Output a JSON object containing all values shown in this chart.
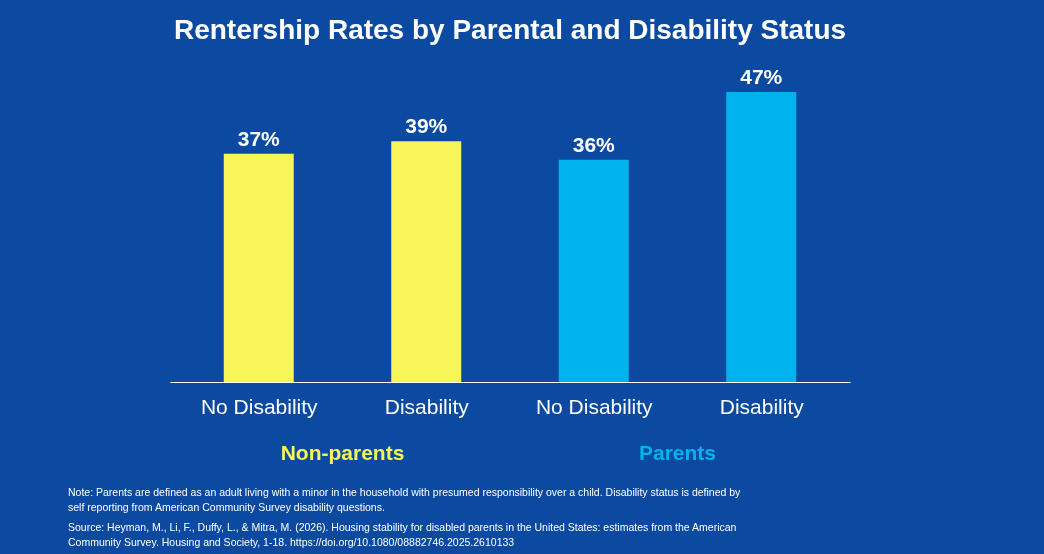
{
  "chart_data": {
    "type": "bar",
    "title": "Rentership Rates by Parental and Disability Status",
    "categories": [
      "No Disability",
      "Disability",
      "No Disability",
      "Disability"
    ],
    "series": [
      {
        "name": "Non-parents",
        "color": "#f7f55a",
        "values": [
          37,
          39,
          null,
          null
        ],
        "value_labels": [
          "37%",
          "39%",
          null,
          null
        ]
      },
      {
        "name": "Parents",
        "color": "#00b2ee",
        "values": [
          null,
          null,
          36,
          47
        ],
        "value_labels": [
          null,
          null,
          "36%",
          "47%"
        ]
      }
    ],
    "grid": false,
    "annotations": [
      "Note: Parents are defined as an adult living with a minor in the household with presumed responsibility over a child. Disability status is defined by self reporting from American Community Survey disability questions.",
      "Source: Heyman, M., Li, F., Duffy, L., & Mitra, M. (2026). Housing stability for disabled parents in the United States: estimates from the American Community Survey. Housing and Society, 1-18. https://doi.org/10.1080/08882746.2025.2610133"
    ]
  }
}
